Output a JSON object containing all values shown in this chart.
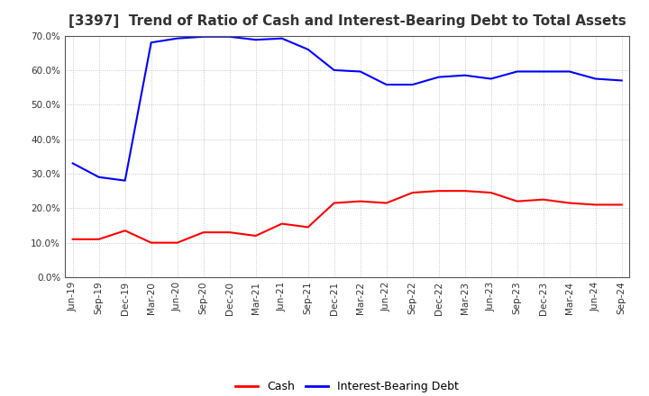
{
  "title": "[3397]  Trend of Ratio of Cash and Interest-Bearing Debt to Total Assets",
  "x_labels": [
    "Jun-19",
    "Sep-19",
    "Dec-19",
    "Mar-20",
    "Jun-20",
    "Sep-20",
    "Dec-20",
    "Mar-21",
    "Jun-21",
    "Sep-21",
    "Dec-21",
    "Mar-22",
    "Jun-22",
    "Sep-22",
    "Dec-22",
    "Mar-23",
    "Jun-23",
    "Sep-23",
    "Dec-23",
    "Mar-24",
    "Jun-24",
    "Sep-24"
  ],
  "cash": [
    0.11,
    0.11,
    0.135,
    0.1,
    0.1,
    0.13,
    0.13,
    0.12,
    0.155,
    0.145,
    0.215,
    0.22,
    0.215,
    0.245,
    0.25,
    0.25,
    0.245,
    0.22,
    0.225,
    0.215,
    0.21,
    0.21
  ],
  "ibd": [
    0.33,
    0.29,
    0.28,
    0.68,
    0.692,
    0.697,
    0.697,
    0.688,
    0.692,
    0.66,
    0.6,
    0.596,
    0.558,
    0.558,
    0.58,
    0.585,
    0.575,
    0.596,
    0.596,
    0.596,
    0.575,
    0.57
  ],
  "cash_color": "#FF0000",
  "ibd_color": "#0000FF",
  "ylim": [
    0.0,
    0.7
  ],
  "yticks": [
    0.0,
    0.1,
    0.2,
    0.3,
    0.4,
    0.5,
    0.6,
    0.7
  ],
  "background_color": "#FFFFFF",
  "plot_bg_color": "#FFFFFF",
  "grid_color": "#AAAAAA",
  "title_fontsize": 11,
  "title_color": "#333333",
  "legend_fontsize": 9,
  "tick_fontsize": 7.5
}
